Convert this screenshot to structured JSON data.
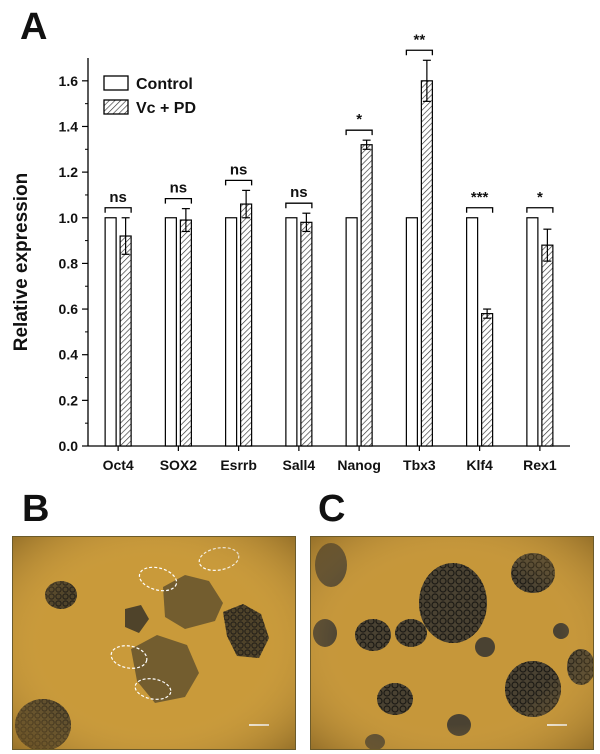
{
  "panels": {
    "a": "A",
    "b": "B",
    "c": "C"
  },
  "chart_data": {
    "type": "bar",
    "categories": [
      "Oct4",
      "SOX2",
      "Esrrb",
      "Sall4",
      "Nanog",
      "Tbx3",
      "Klf4",
      "Rex1"
    ],
    "series": [
      {
        "name": "Control",
        "values": [
          1.0,
          1.0,
          1.0,
          1.0,
          1.0,
          1.0,
          1.0,
          1.0
        ],
        "errors": [
          0,
          0,
          0,
          0,
          0,
          0,
          0,
          0
        ],
        "pattern": "open"
      },
      {
        "name": "Vc + PD",
        "values": [
          0.92,
          0.99,
          1.06,
          0.98,
          1.32,
          1.6,
          0.58,
          0.88
        ],
        "errors": [
          0.08,
          0.05,
          0.06,
          0.04,
          0.02,
          0.09,
          0.02,
          0.07
        ],
        "pattern": "hatched"
      }
    ],
    "significance": [
      "ns",
      "ns",
      "ns",
      "ns",
      "*",
      "**",
      "***",
      "*"
    ],
    "xlabel": "",
    "ylabel": "Relative expression",
    "ylim": [
      0.0,
      1.7
    ],
    "yticks": [
      "0.0",
      "0.2",
      "0.4",
      "0.6",
      "0.8",
      "1.0",
      "1.2",
      "1.4",
      "1.6"
    ],
    "grid": false,
    "legend": "top-left"
  },
  "colors": {
    "bar_stroke": "#000000",
    "fill": "#ffffff",
    "photo_bg": "#c99a3a",
    "colony": "#2e2a22"
  }
}
